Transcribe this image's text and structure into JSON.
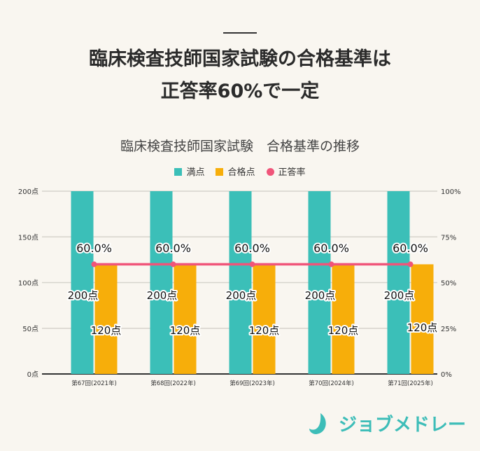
{
  "heading": {
    "line1": "臨床検査技師国家試験の合格基準は",
    "line2": "正答率60%で一定"
  },
  "logo_text": "ジョブメドレー",
  "chart_data": {
    "type": "bar",
    "title": "臨床検査技師国家試験　合格基準の推移",
    "categories": [
      "第67回(2021年)",
      "第68回(2022年)",
      "第69回(2023年)",
      "第70回(2024年)",
      "第71回(2025年)"
    ],
    "series": [
      {
        "name": "満点",
        "type": "bar",
        "axis": "left",
        "color": "#3bbfb8",
        "values": [
          200,
          200,
          200,
          200,
          200
        ],
        "labels": [
          "200点",
          "200点",
          "200点",
          "200点",
          "200点"
        ]
      },
      {
        "name": "合格点",
        "type": "bar",
        "axis": "left",
        "color": "#f7ae0a",
        "values": [
          120,
          120,
          120,
          120,
          120
        ],
        "labels": [
          "120点",
          "120点",
          "120点",
          "120点",
          "120点"
        ]
      },
      {
        "name": "正答率",
        "type": "line",
        "axis": "right",
        "color": "#f0557a",
        "values": [
          60,
          60,
          60,
          60,
          60
        ],
        "labels": [
          "60.0%",
          "60.0%",
          "60.0%",
          "60.0%",
          "60.0%"
        ]
      }
    ],
    "y_left": {
      "ylim": [
        0,
        200
      ],
      "ticks": [
        "0点",
        "50点",
        "100点",
        "150点",
        "200点"
      ]
    },
    "y_right": {
      "ylim": [
        0,
        100
      ],
      "ticks": [
        "0%",
        "25%",
        "50%",
        "75%",
        "100%"
      ]
    },
    "grid": true,
    "legend": "top"
  }
}
